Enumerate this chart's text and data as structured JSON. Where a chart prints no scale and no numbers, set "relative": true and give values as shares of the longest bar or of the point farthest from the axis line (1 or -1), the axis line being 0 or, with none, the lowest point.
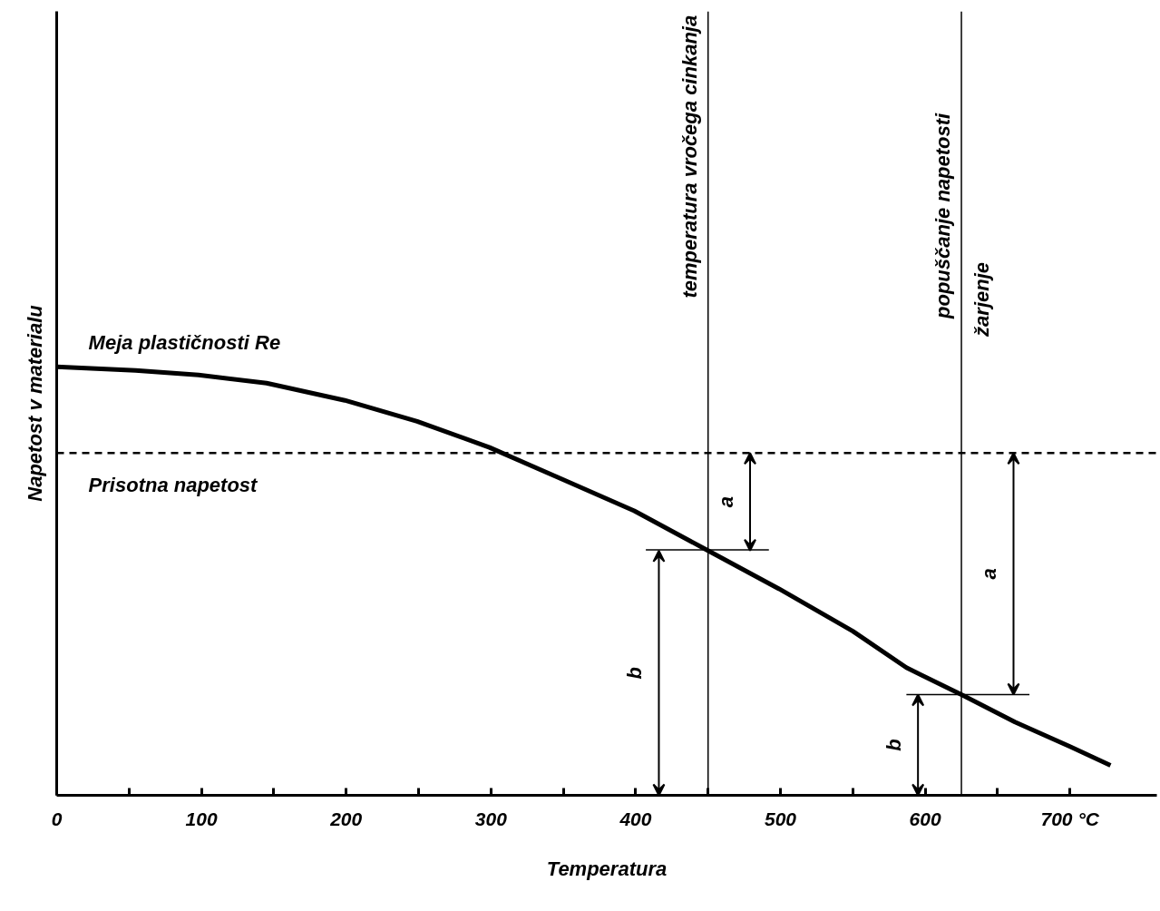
{
  "chart_data": {
    "type": "line",
    "relative": true,
    "xlabel": "Temperatura",
    "ylabel": "Napetost v materialu",
    "x": [
      0,
      54.5,
      98,
      145,
      199,
      249,
      299,
      349,
      399,
      449,
      499,
      550,
      587,
      625,
      662,
      700,
      728
    ],
    "series": [
      {
        "name": "Meja plastičnosti Re",
        "color": "#000000",
        "values": [
          1.0,
          0.992,
          0.981,
          0.962,
          0.922,
          0.873,
          0.812,
          0.738,
          0.664,
          0.573,
          0.482,
          0.383,
          0.298,
          0.235,
          0.171,
          0.114,
          0.07
        ]
      },
      {
        "color": "#000000",
        "x": [
          407,
          492
        ],
        "values": [
          0.573,
          0.573
        ]
      },
      {
        "color": "#000000",
        "x": [
          587,
          672
        ],
        "values": [
          0.235,
          0.235
        ]
      }
    ],
    "xlim": [
      0,
      760
    ],
    "xticks": [
      0,
      {
        "value": 50,
        "label": null
      },
      100,
      {
        "value": 150,
        "label": null
      },
      200,
      {
        "value": 250,
        "label": null
      },
      300,
      {
        "value": 350,
        "label": null
      },
      400,
      {
        "value": 450,
        "label": null
      },
      500,
      {
        "value": 550,
        "label": null
      },
      600,
      {
        "value": 650,
        "label": null
      },
      {
        "value": 700,
        "label": "700 °C"
      }
    ],
    "ref_lines": [
      {
        "axis": "y",
        "value": 0.799,
        "label": "Prisotna napetost",
        "line_style": "dashed",
        "color": "#000000"
      },
      {
        "axis": "x",
        "value": 450,
        "label": "temperatura vročega cinkanja",
        "color": "#000000"
      },
      {
        "axis": "x",
        "value": 625,
        "label": "popuščanje napetosti",
        "color": "#000000"
      }
    ],
    "annotations": [
      "a",
      "b",
      "a",
      "b",
      "žarjenje"
    ],
    "grid": false,
    "tick_labels": "x",
    "line_style": "solid",
    "marker": "none"
  }
}
